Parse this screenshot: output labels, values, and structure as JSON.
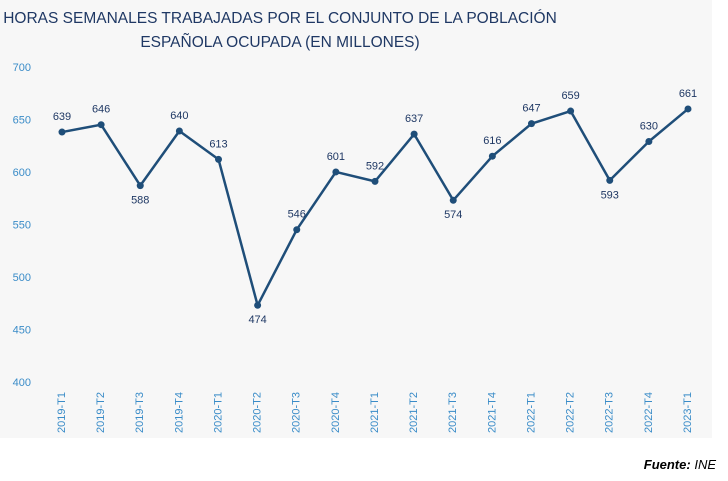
{
  "chart_data": {
    "type": "line",
    "title": [
      "HORAS SEMANALES TRABAJADAS POR EL CONJUNTO DE LA POBLACIÓN",
      "ESPAÑOLA OCUPADA (EN MILLONES)"
    ],
    "categories": [
      "2019-T1",
      "2019-T2",
      "2019-T3",
      "2019-T4",
      "2020-T1",
      "2020-T2",
      "2020-T3",
      "2020-T4",
      "2021-T1",
      "2021-T2",
      "2021-T3",
      "2021-T4",
      "2022-T1",
      "2022-T2",
      "2022-T3",
      "2022-T4",
      "2023-T1"
    ],
    "values": [
      639,
      646,
      588,
      640,
      613,
      474,
      546,
      601,
      592,
      637,
      574,
      616,
      647,
      659,
      593,
      630,
      661
    ],
    "color": "#1f4e79",
    "ylim": [
      400,
      700
    ],
    "yticks": [
      400,
      450,
      500,
      550,
      600,
      650,
      700
    ],
    "grid": false
  },
  "source": {
    "label": "Fuente:",
    "text": "INE"
  }
}
